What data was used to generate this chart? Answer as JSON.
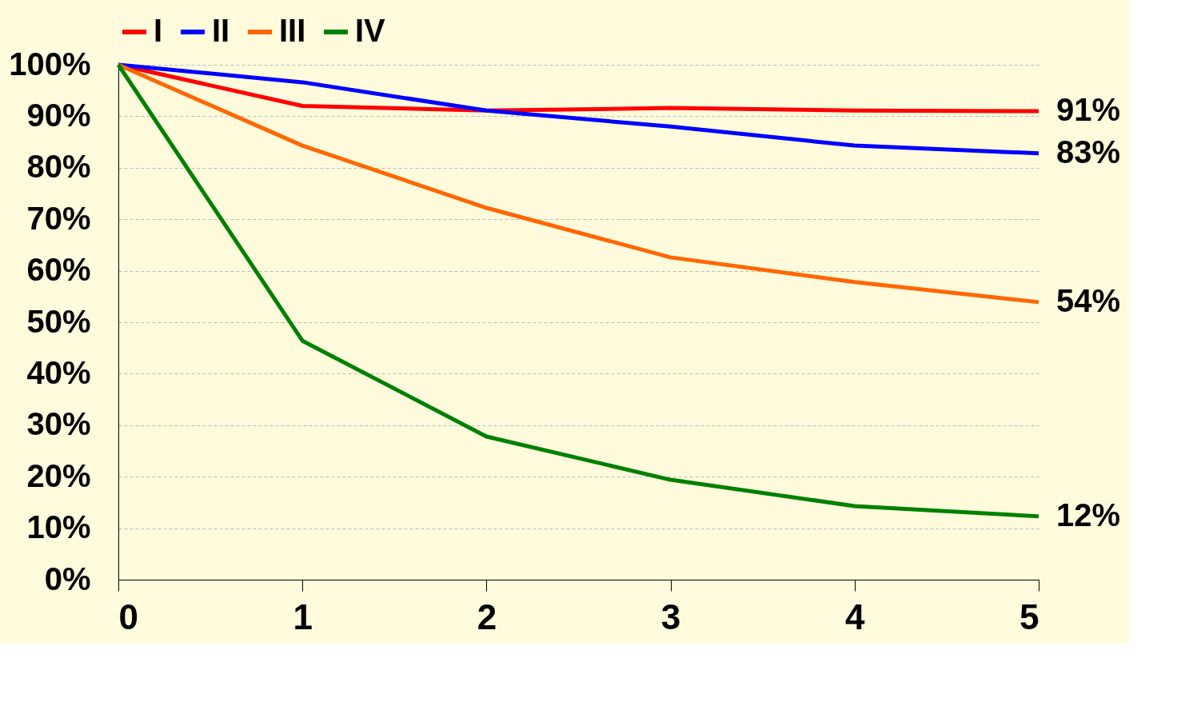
{
  "chart_data": {
    "type": "line",
    "x": [
      0,
      1,
      2,
      3,
      4,
      5
    ],
    "series": [
      {
        "name": "I",
        "color": "#ff0000",
        "values": [
          100,
          92,
          91.1,
          91.6,
          91.1,
          91
        ],
        "value_labels": [
          null,
          null,
          null,
          null,
          null,
          "91%"
        ]
      },
      {
        "name": "II",
        "color": "#0000ff",
        "values": [
          100,
          96.6,
          91.1,
          88,
          84.3,
          82.8
        ],
        "value_labels": [
          null,
          null,
          null,
          null,
          null,
          "83%"
        ]
      },
      {
        "name": "III",
        "color": "#ff6600",
        "values": [
          100,
          84.3,
          72.2,
          62.6,
          57.8,
          53.9
        ],
        "value_labels": [
          null,
          null,
          null,
          null,
          null,
          "54%"
        ]
      },
      {
        "name": "IV",
        "color": "#008000",
        "values": [
          100,
          46.4,
          27.8,
          19.4,
          14.3,
          12.3
        ],
        "value_labels": [
          null,
          null,
          null,
          null,
          null,
          "12%"
        ]
      }
    ],
    "xlim": [
      0,
      5
    ],
    "xticks": [
      0,
      1,
      2,
      3,
      4,
      5
    ],
    "ylim": [
      0,
      100
    ],
    "yticks": [
      {
        "value": 0,
        "label": "0%"
      },
      {
        "value": 10,
        "label": "10%"
      },
      {
        "value": 20,
        "label": "20%"
      },
      {
        "value": 30,
        "label": "30%"
      },
      {
        "value": 40,
        "label": "40%"
      },
      {
        "value": 50,
        "label": "50%"
      },
      {
        "value": 60,
        "label": "60%"
      },
      {
        "value": 70,
        "label": "70%"
      },
      {
        "value": 80,
        "label": "80%"
      },
      {
        "value": 90,
        "label": "90%"
      },
      {
        "value": 100,
        "label": "100%"
      }
    ],
    "grid": "y",
    "legend": "top",
    "marker": "none",
    "line_style": "solid"
  }
}
